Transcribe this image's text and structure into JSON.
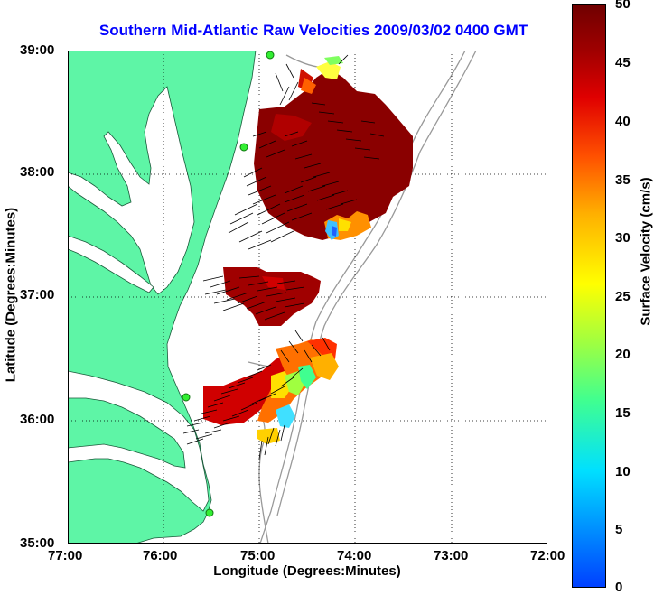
{
  "title": "Southern Mid-Atlantic Raw Velocities 2009/03/02 0400 GMT",
  "axes": {
    "xlabel": "Longitude (Degrees:Minutes)",
    "ylabel": "Latitude (Degrees:Minutes)",
    "xticks": [
      "77:00",
      "76:00",
      "75:00",
      "74:00",
      "73:00",
      "72:00"
    ],
    "yticks": [
      "39:00",
      "38:00",
      "37:00",
      "36:00",
      "35:00"
    ]
  },
  "colorbar": {
    "label": "Surface Velocity (cm/s)",
    "ticks": [
      "50",
      "45",
      "40",
      "35",
      "30",
      "25",
      "20",
      "15",
      "10",
      "5",
      "0"
    ]
  },
  "colors": {
    "land": "#5ef5a6",
    "title": "#0000ff",
    "contour": "#999999",
    "station": "#33ee33"
  }
}
